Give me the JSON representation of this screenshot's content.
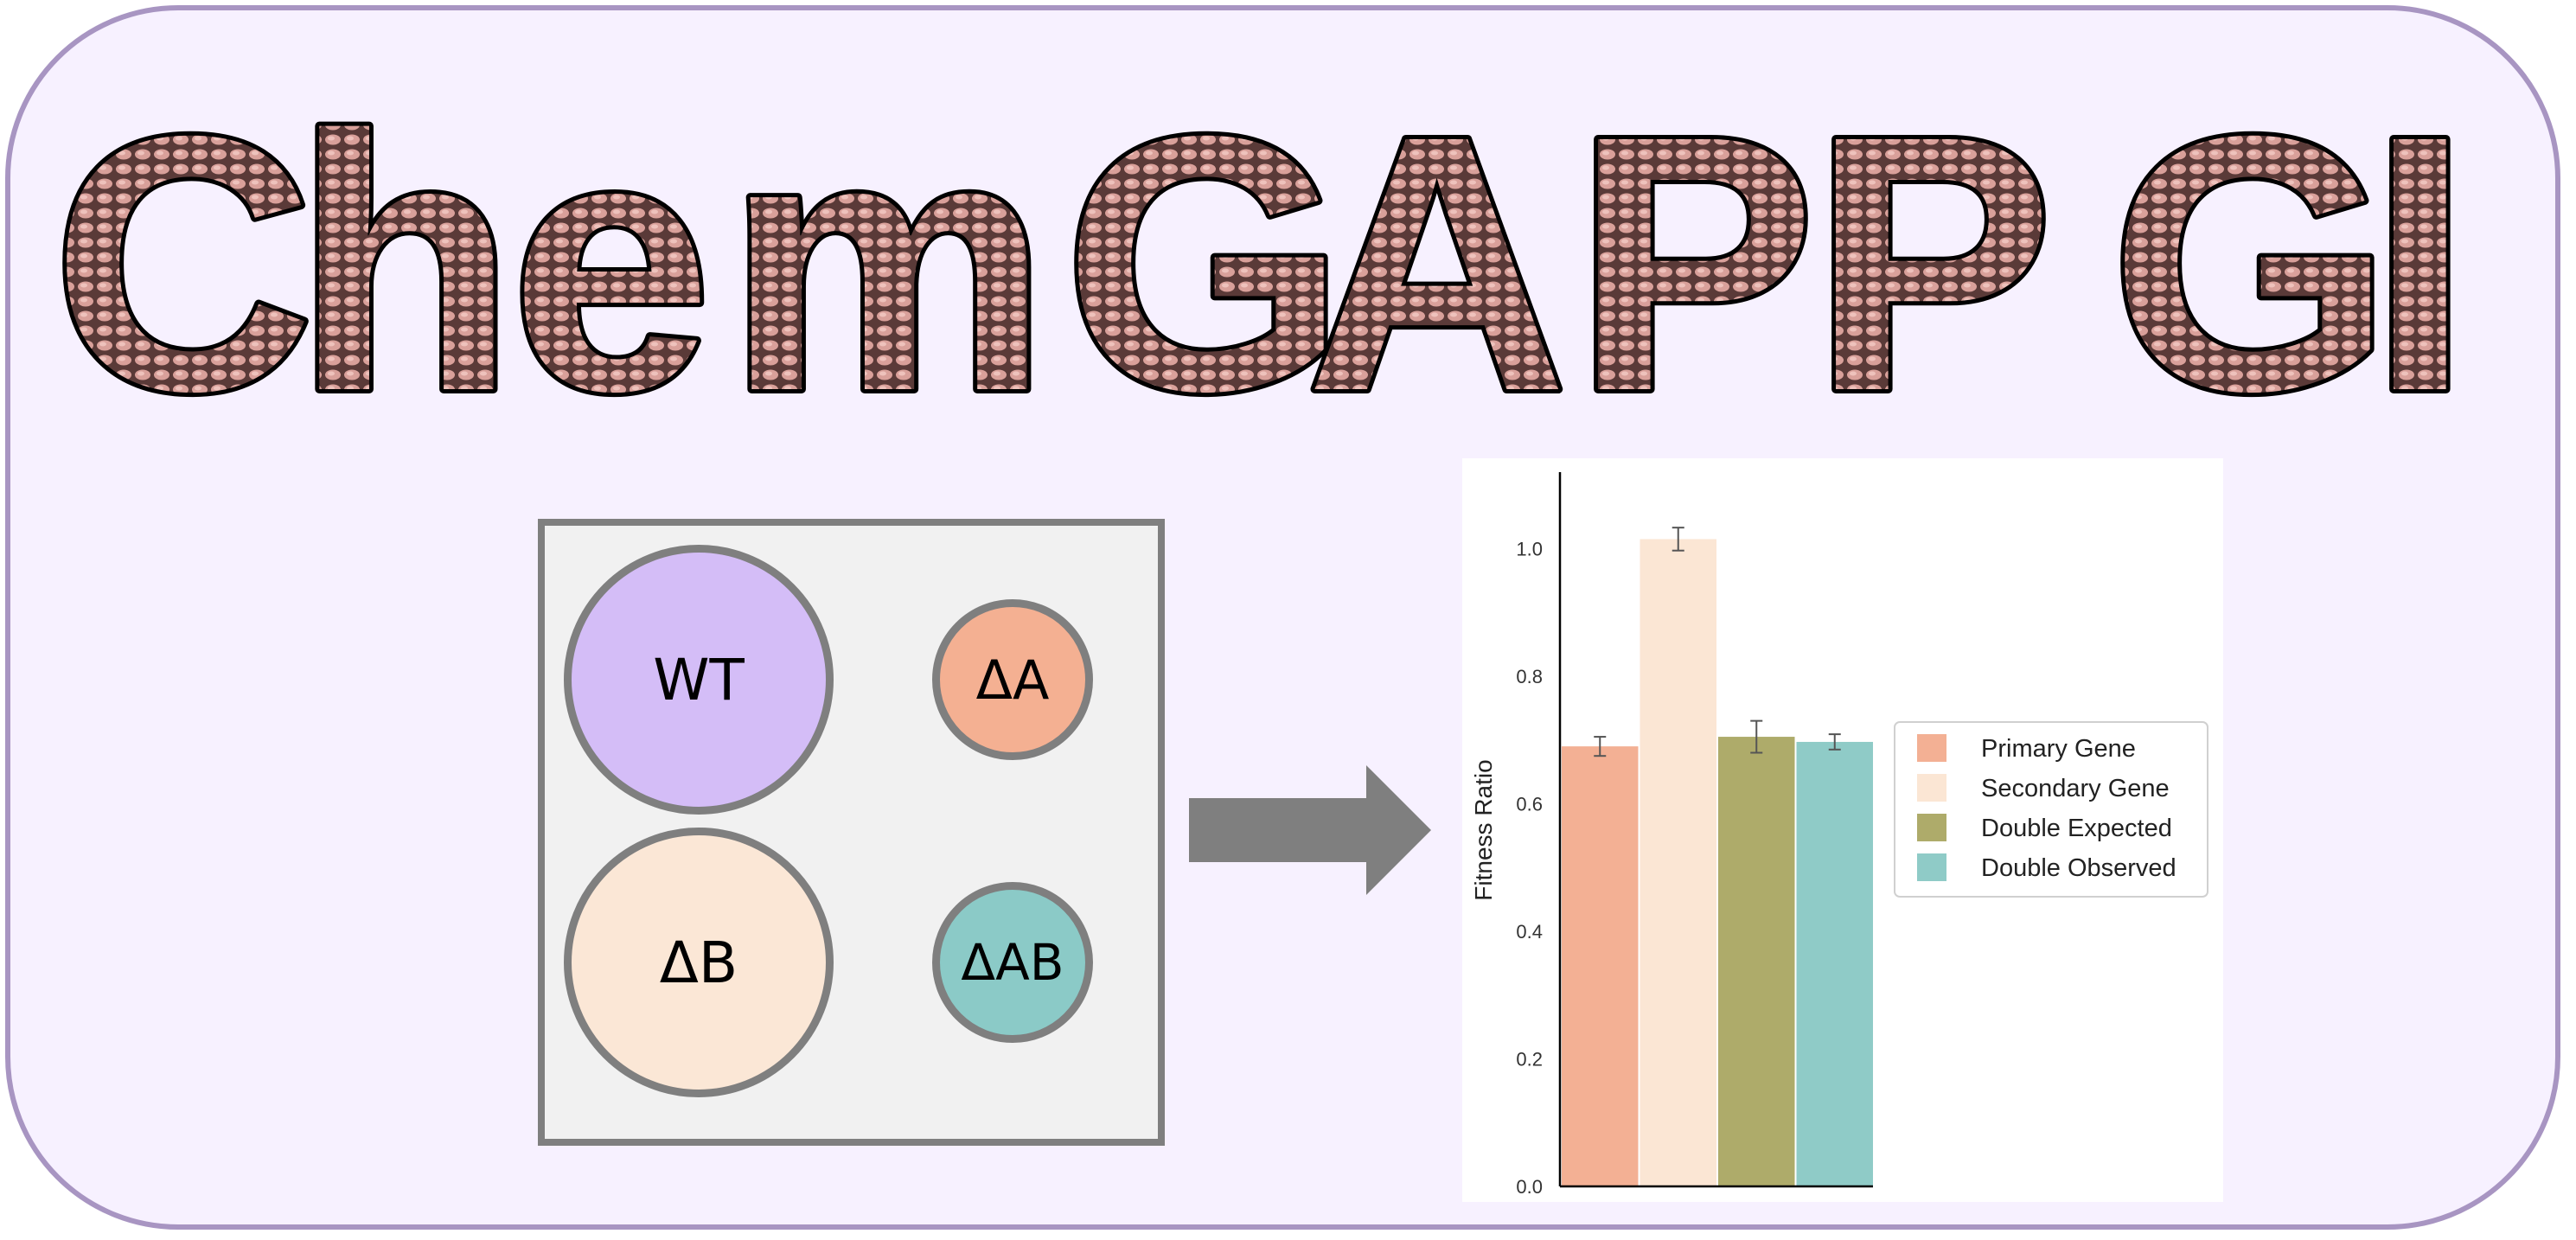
{
  "title": {
    "text": "ChemGAPP GI",
    "letters": [
      "C",
      "h",
      "e",
      "m",
      "G",
      "A",
      "P",
      "P",
      "G",
      "I"
    ]
  },
  "plate": {
    "colonies": [
      {
        "label": "WT",
        "color": "#d4bdf7"
      },
      {
        "label": "ΔA",
        "color": "#f4b092"
      },
      {
        "label": "ΔB",
        "color": "#fbe7d6"
      },
      {
        "label": "ΔAB",
        "color": "#8bcac7"
      }
    ]
  },
  "colors": {
    "background": "#f7f1ff",
    "border": "#a895c2",
    "arrow": "#7f7f7f",
    "title_fill": "#8a5f5c"
  },
  "chart_data": {
    "type": "bar",
    "title": "",
    "xlabel": "",
    "ylabel": "Fitness Ratio",
    "ylim": [
      0,
      1.12
    ],
    "yticks": [
      "0.0",
      "0.2",
      "0.4",
      "0.6",
      "0.8",
      "1.0"
    ],
    "grid": false,
    "legend_position": "right",
    "series": [
      {
        "name": "Primary Gene",
        "value": 0.69,
        "error": 0.015,
        "color": "#f3b094"
      },
      {
        "name": "Secondary Gene",
        "value": 1.015,
        "error": 0.018,
        "color": "#fbe6d4"
      },
      {
        "name": "Double Expected",
        "value": 0.705,
        "error": 0.025,
        "color": "#aeab6a"
      },
      {
        "name": "Double Observed",
        "value": 0.697,
        "error": 0.012,
        "color": "#8fcbc7"
      }
    ]
  }
}
